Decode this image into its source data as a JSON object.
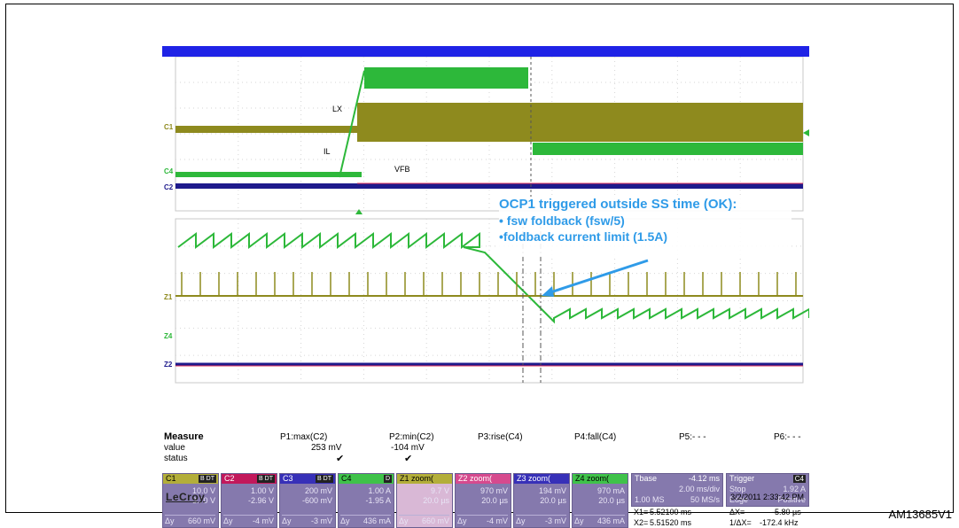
{
  "figure_id": "AM13685V1",
  "brand": "LeCroy",
  "timestamp": "3/2/2011 2:33:42 PM",
  "colors": {
    "c1_olive": "#8e8a1e",
    "c2_navy": "#1e1a8c",
    "c4_green": "#2db83a",
    "c3_red": "#e0335a",
    "callout_blue": "#2f9be8",
    "header_bar": "#1f23e6",
    "tile_purple": "#8579ad"
  },
  "trace_labels": {
    "lx": "LX",
    "il": "IL",
    "vfb": "VFB"
  },
  "channel_markers": {
    "c1": "C1",
    "c4": "C4",
    "c2": "C2",
    "z1": "Z1",
    "z4": "Z4",
    "z2": "Z2"
  },
  "callout": {
    "line1": "OCP1 triggered outside SS time (OK):",
    "line2": "• fsw foldback (fsw/5)",
    "line3": "•foldback current limit (1.5A)"
  },
  "measure": {
    "label_measure": "Measure",
    "label_value": "value",
    "label_status": "status",
    "params": [
      {
        "name": "P1:max(C2)",
        "value": "253 mV",
        "status": "✔"
      },
      {
        "name": "P2:min(C2)",
        "value": "-104 mV",
        "status": "✔"
      },
      {
        "name": "P3:rise(C4)",
        "value": "",
        "status": ""
      },
      {
        "name": "P4:fall(C4)",
        "value": "",
        "status": ""
      },
      {
        "name": "P5:- - -",
        "value": "",
        "status": ""
      },
      {
        "name": "P6:- - -",
        "value": "",
        "status": ""
      }
    ]
  },
  "channels": [
    {
      "id": "C1",
      "badge": "B DT",
      "v1": "10.0 V",
      "v2": "3.70 V",
      "dy_label": "Δy",
      "dy": "660 mV",
      "header_color": "#b3ae3a"
    },
    {
      "id": "C2",
      "badge": "B DT",
      "v1": "1.00 V",
      "v2": "-2.96 V",
      "dy_label": "Δy",
      "dy": "-4 mV",
      "header_color": "#c2185b"
    },
    {
      "id": "C3",
      "badge": "B DT",
      "v1": "200 mV",
      "v2": "-600 mV",
      "dy_label": "Δy",
      "dy": "-3 mV",
      "header_color": "#3730b8"
    },
    {
      "id": "C4",
      "badge": "D",
      "v1": "1.00 A",
      "v2": "-1.95 A",
      "dy_label": "Δy",
      "dy": "436 mA",
      "header_color": "#3fc24a"
    },
    {
      "id": "Z1 zoom(",
      "badge": "",
      "v1": "9.7 V",
      "v2": "20.0 µs",
      "dy_label": "Δy",
      "dy": "660 mV",
      "header_color": "#b3ae3a"
    },
    {
      "id": "Z2 zoom(",
      "badge": "",
      "v1": "970 mV",
      "v2": "20.0 µs",
      "dy_label": "Δy",
      "dy": "-4 mV",
      "header_color": "#d64a8e"
    },
    {
      "id": "Z3 zoom(",
      "badge": "",
      "v1": "194 mV",
      "v2": "20.0 µs",
      "dy_label": "Δy",
      "dy": "-3 mV",
      "header_color": "#3730b8"
    },
    {
      "id": "Z4 zoom(",
      "badge": "",
      "v1": "970 mA",
      "v2": "20.0 µs",
      "dy_label": "Δy",
      "dy": "436 mA",
      "header_color": "#3fc24a"
    }
  ],
  "timebase": {
    "label": "Tbase",
    "offset": "-4.12 ms",
    "div": "2.00 ms/div",
    "samples": "1.00 MS",
    "rate": "50 MS/s"
  },
  "trigger": {
    "label": "Trigger",
    "channel": "C4",
    "mode": "Stop",
    "level": "1.92 A",
    "type": "Edge",
    "slope": "Positive"
  },
  "cursors": {
    "x1_label": "X1=",
    "x1": "5.52100 ms",
    "dx_label": "ΔX=",
    "dx": "-5.80 µs",
    "x2_label": "X2=",
    "x2": "5.51520 ms",
    "inv_label": "1/ΔX=",
    "inv": "-172.4 kHz"
  }
}
